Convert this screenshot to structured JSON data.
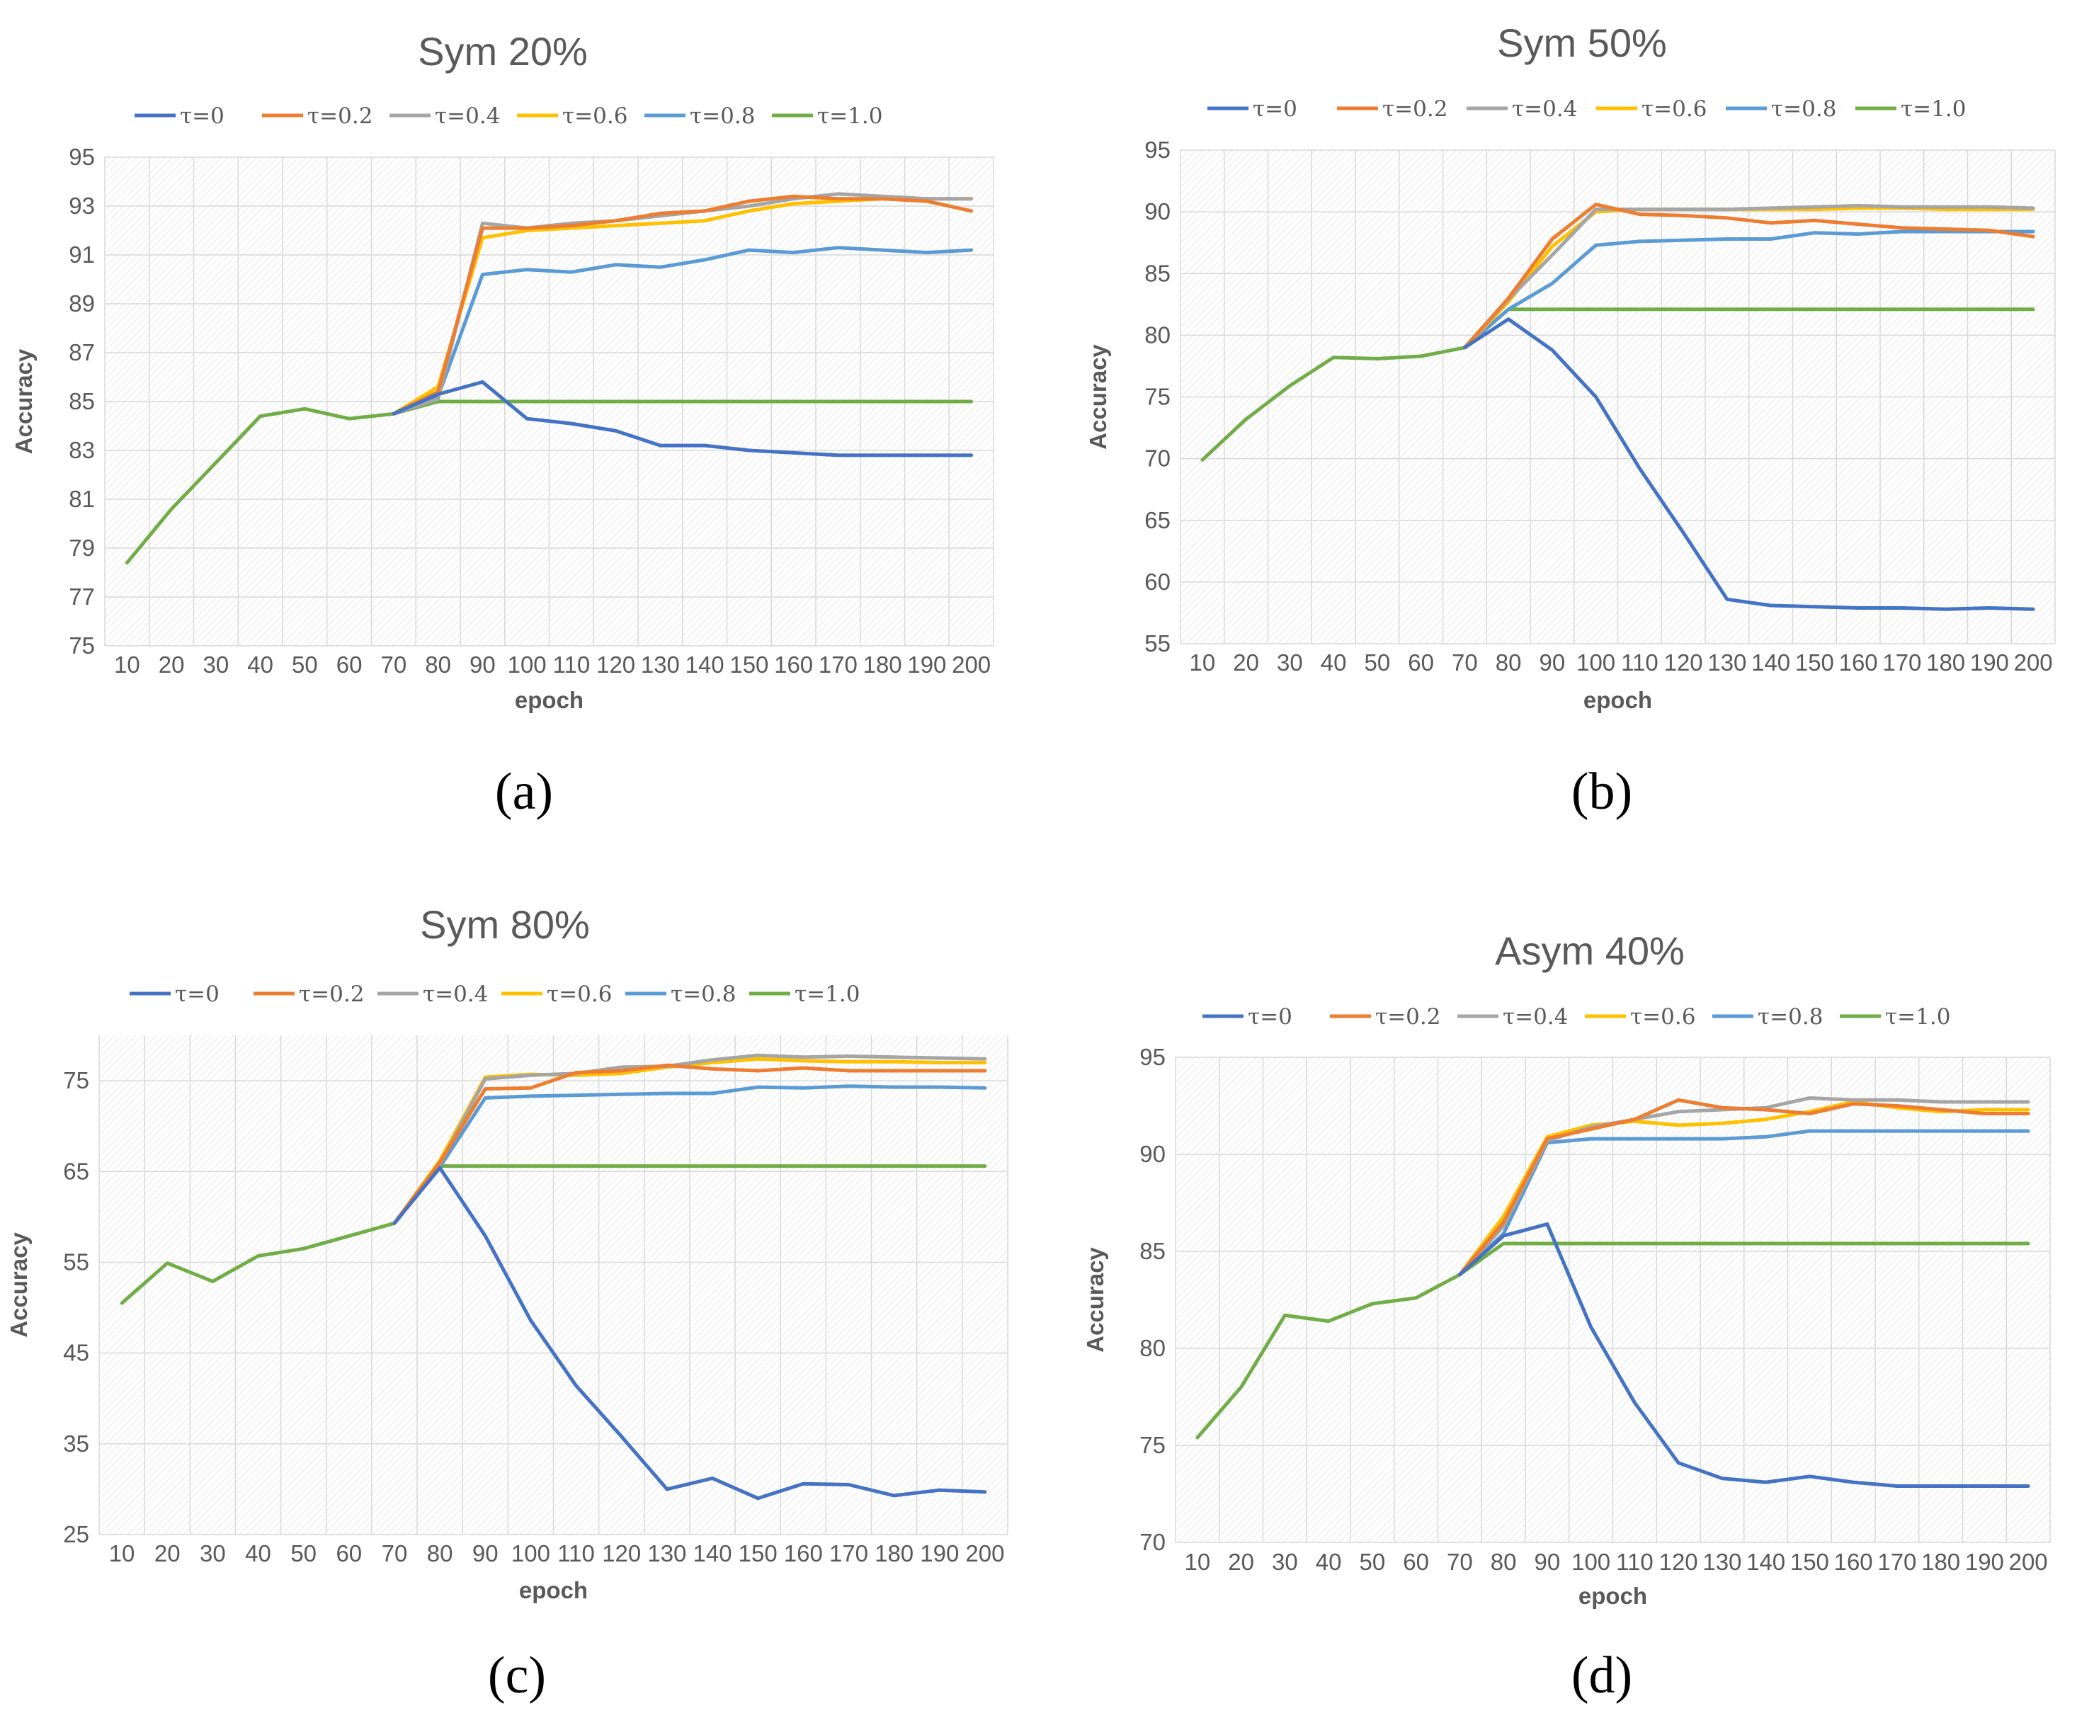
{
  "chart_data": [
    {
      "type": "line",
      "title": "Sym 20%",
      "caption": "(a)",
      "xlabel": "epoch",
      "ylabel": "Accuracy",
      "ylim": [
        75,
        95
      ],
      "yticks": [
        75,
        77,
        79,
        81,
        83,
        85,
        87,
        89,
        91,
        93,
        95
      ],
      "categories": [
        "10",
        "20",
        "30",
        "40",
        "50",
        "60",
        "70",
        "80",
        "90",
        "100",
        "110",
        "120",
        "130",
        "140",
        "150",
        "160",
        "170",
        "180",
        "190",
        "200"
      ],
      "grid": true,
      "legend_position": "top",
      "series": [
        {
          "name": "τ=0",
          "color": "#4472C4",
          "values": [
            null,
            null,
            null,
            null,
            null,
            null,
            84.5,
            85.3,
            85.8,
            84.3,
            84.1,
            83.8,
            83.2,
            83.2,
            83.0,
            82.9,
            82.8,
            82.8,
            82.8,
            82.8
          ]
        },
        {
          "name": "τ=0.2",
          "color": "#ED7D31",
          "values": [
            null,
            null,
            null,
            null,
            null,
            null,
            84.5,
            85.4,
            92.1,
            92.1,
            92.2,
            92.4,
            92.7,
            92.8,
            93.2,
            93.4,
            93.3,
            93.3,
            93.2,
            92.8
          ]
        },
        {
          "name": "τ=0.4",
          "color": "#A5A5A5",
          "values": [
            null,
            null,
            null,
            null,
            null,
            null,
            84.5,
            85.1,
            92.3,
            92.1,
            92.3,
            92.4,
            92.6,
            92.8,
            93.0,
            93.3,
            93.5,
            93.4,
            93.3,
            93.3
          ]
        },
        {
          "name": "τ=0.6",
          "color": "#FFC000",
          "values": [
            null,
            null,
            null,
            null,
            null,
            null,
            84.5,
            85.6,
            91.7,
            92.0,
            92.1,
            92.2,
            92.3,
            92.4,
            92.8,
            93.1,
            93.2,
            93.3,
            93.3,
            93.3
          ]
        },
        {
          "name": "τ=0.8",
          "color": "#5B9BD5",
          "values": [
            null,
            null,
            null,
            null,
            null,
            null,
            84.5,
            85.2,
            90.2,
            90.4,
            90.3,
            90.6,
            90.5,
            90.8,
            91.2,
            91.1,
            91.3,
            91.2,
            91.1,
            91.2
          ]
        },
        {
          "name": "τ=1.0",
          "color": "#70AD47",
          "values": [
            78.4,
            80.6,
            82.5,
            84.4,
            84.7,
            84.3,
            84.5,
            85.0,
            85.0,
            85.0,
            85.0,
            85.0,
            85.0,
            85.0,
            85.0,
            85.0,
            85.0,
            85.0,
            85.0,
            85.0
          ]
        }
      ]
    },
    {
      "type": "line",
      "title": "Sym 50%",
      "caption": "(b)",
      "xlabel": "epoch",
      "ylabel": "Accuracy",
      "ylim": [
        55,
        95
      ],
      "yticks": [
        55,
        60,
        65,
        70,
        75,
        80,
        85,
        90,
        95
      ],
      "categories": [
        "10",
        "20",
        "30",
        "40",
        "50",
        "60",
        "70",
        "80",
        "90",
        "100",
        "110",
        "120",
        "130",
        "140",
        "150",
        "160",
        "170",
        "180",
        "190",
        "200"
      ],
      "grid": true,
      "legend_position": "top",
      "series": [
        {
          "name": "τ=0",
          "color": "#4472C4",
          "values": [
            null,
            null,
            null,
            null,
            null,
            null,
            79.0,
            81.3,
            78.8,
            75.0,
            69.2,
            64.0,
            58.6,
            58.1,
            58.0,
            57.9,
            57.9,
            57.8,
            57.9,
            57.8
          ]
        },
        {
          "name": "τ=0.2",
          "color": "#ED7D31",
          "values": [
            null,
            null,
            null,
            null,
            null,
            null,
            79.0,
            83.0,
            87.8,
            90.6,
            89.8,
            89.7,
            89.5,
            89.1,
            89.3,
            89.0,
            88.7,
            88.6,
            88.5,
            88.0
          ]
        },
        {
          "name": "τ=0.4",
          "color": "#A5A5A5",
          "values": [
            null,
            null,
            null,
            null,
            null,
            null,
            79.0,
            82.9,
            86.5,
            90.2,
            90.2,
            90.2,
            90.2,
            90.3,
            90.4,
            90.5,
            90.4,
            90.4,
            90.4,
            90.3
          ]
        },
        {
          "name": "τ=0.6",
          "color": "#FFC000",
          "values": [
            null,
            null,
            null,
            null,
            null,
            null,
            79.0,
            82.7,
            87.2,
            90.0,
            90.2,
            90.2,
            90.2,
            90.2,
            90.2,
            90.3,
            90.3,
            90.2,
            90.2,
            90.2
          ]
        },
        {
          "name": "τ=0.8",
          "color": "#5B9BD5",
          "values": [
            null,
            null,
            null,
            null,
            null,
            null,
            79.0,
            82.1,
            84.2,
            87.3,
            87.6,
            87.7,
            87.8,
            87.8,
            88.3,
            88.2,
            88.4,
            88.4,
            88.4,
            88.4
          ]
        },
        {
          "name": "τ=1.0",
          "color": "#70AD47",
          "values": [
            69.9,
            73.2,
            75.9,
            78.2,
            78.1,
            78.3,
            79.0,
            82.1,
            82.1,
            82.1,
            82.1,
            82.1,
            82.1,
            82.1,
            82.1,
            82.1,
            82.1,
            82.1,
            82.1,
            82.1
          ]
        }
      ]
    },
    {
      "type": "line",
      "title": "Sym 80%",
      "caption": "(c)",
      "xlabel": "epoch",
      "ylabel": "Accuracy",
      "ylim": [
        25,
        80
      ],
      "yticks": [
        25,
        35,
        45,
        55,
        65,
        75
      ],
      "categories": [
        "10",
        "20",
        "30",
        "40",
        "50",
        "60",
        "70",
        "80",
        "90",
        "100",
        "110",
        "120",
        "130",
        "140",
        "150",
        "160",
        "170",
        "180",
        "190",
        "200"
      ],
      "grid": true,
      "legend_position": "top",
      "series": [
        {
          "name": "τ=0",
          "color": "#4472C4",
          "values": [
            null,
            null,
            null,
            null,
            null,
            null,
            59.3,
            65.4,
            57.9,
            48.6,
            41.4,
            35.8,
            30.0,
            31.2,
            29.0,
            30.6,
            30.5,
            29.3,
            29.9,
            29.7
          ]
        },
        {
          "name": "τ=0.2",
          "color": "#ED7D31",
          "values": [
            null,
            null,
            null,
            null,
            null,
            null,
            59.3,
            66.0,
            74.1,
            74.2,
            75.9,
            76.1,
            76.7,
            76.3,
            76.1,
            76.4,
            76.1,
            76.1,
            76.1,
            76.1
          ]
        },
        {
          "name": "τ=0.4",
          "color": "#A5A5A5",
          "values": [
            null,
            null,
            null,
            null,
            null,
            null,
            59.3,
            65.8,
            75.2,
            75.6,
            75.8,
            76.5,
            76.6,
            77.3,
            77.8,
            77.6,
            77.7,
            77.6,
            77.5,
            77.4
          ]
        },
        {
          "name": "τ=0.6",
          "color": "#FFC000",
          "values": [
            null,
            null,
            null,
            null,
            null,
            null,
            59.3,
            66.2,
            75.4,
            75.7,
            75.6,
            75.8,
            76.5,
            77.0,
            77.4,
            77.2,
            77.1,
            77.1,
            77.0,
            77.0
          ]
        },
        {
          "name": "τ=0.8",
          "color": "#5B9BD5",
          "values": [
            null,
            null,
            null,
            null,
            null,
            null,
            59.3,
            65.5,
            73.1,
            73.3,
            73.4,
            73.5,
            73.6,
            73.6,
            74.3,
            74.2,
            74.4,
            74.3,
            74.3,
            74.2
          ]
        },
        {
          "name": "τ=1.0",
          "color": "#70AD47",
          "values": [
            50.5,
            54.9,
            52.9,
            55.7,
            56.5,
            57.9,
            59.3,
            65.6,
            65.6,
            65.6,
            65.6,
            65.6,
            65.6,
            65.6,
            65.6,
            65.6,
            65.6,
            65.6,
            65.6,
            65.6
          ]
        }
      ]
    },
    {
      "type": "line",
      "title": "Asym 40%",
      "caption": "(d)",
      "xlabel": "epoch",
      "ylabel": "Accuracy",
      "ylim": [
        70,
        95
      ],
      "yticks": [
        70,
        75,
        80,
        85,
        90,
        95
      ],
      "categories": [
        "10",
        "20",
        "30",
        "40",
        "50",
        "60",
        "70",
        "80",
        "90",
        "100",
        "110",
        "120",
        "130",
        "140",
        "150",
        "160",
        "170",
        "180",
        "190",
        "200"
      ],
      "grid": true,
      "legend_position": "top",
      "series": [
        {
          "name": "τ=0",
          "color": "#4472C4",
          "values": [
            null,
            null,
            null,
            null,
            null,
            null,
            83.8,
            85.8,
            86.4,
            81.1,
            77.2,
            74.1,
            73.3,
            73.1,
            73.4,
            73.1,
            72.9,
            72.9,
            72.9,
            72.9
          ]
        },
        {
          "name": "τ=0.2",
          "color": "#ED7D31",
          "values": [
            null,
            null,
            null,
            null,
            null,
            null,
            83.8,
            86.5,
            90.8,
            91.3,
            91.8,
            92.8,
            92.4,
            92.3,
            92.1,
            92.6,
            92.5,
            92.3,
            92.1,
            92.1
          ]
        },
        {
          "name": "τ=0.4",
          "color": "#A5A5A5",
          "values": [
            null,
            null,
            null,
            null,
            null,
            null,
            83.8,
            86.3,
            90.7,
            91.4,
            91.8,
            92.2,
            92.3,
            92.4,
            92.9,
            92.8,
            92.8,
            92.7,
            92.7,
            92.7
          ]
        },
        {
          "name": "τ=0.6",
          "color": "#FFC000",
          "values": [
            null,
            null,
            null,
            null,
            null,
            null,
            83.8,
            86.8,
            90.9,
            91.5,
            91.7,
            91.5,
            91.6,
            91.8,
            92.2,
            92.7,
            92.4,
            92.2,
            92.3,
            92.3
          ]
        },
        {
          "name": "τ=0.8",
          "color": "#5B9BD5",
          "values": [
            null,
            null,
            null,
            null,
            null,
            null,
            83.8,
            85.9,
            90.6,
            90.8,
            90.8,
            90.8,
            90.8,
            90.9,
            91.2,
            91.2,
            91.2,
            91.2,
            91.2,
            91.2
          ]
        },
        {
          "name": "τ=1.0",
          "color": "#70AD47",
          "values": [
            75.4,
            78.0,
            81.7,
            81.4,
            82.3,
            82.6,
            83.8,
            85.4,
            85.4,
            85.4,
            85.4,
            85.4,
            85.4,
            85.4,
            85.4,
            85.4,
            85.4,
            85.4,
            85.4,
            85.4
          ]
        }
      ]
    }
  ]
}
